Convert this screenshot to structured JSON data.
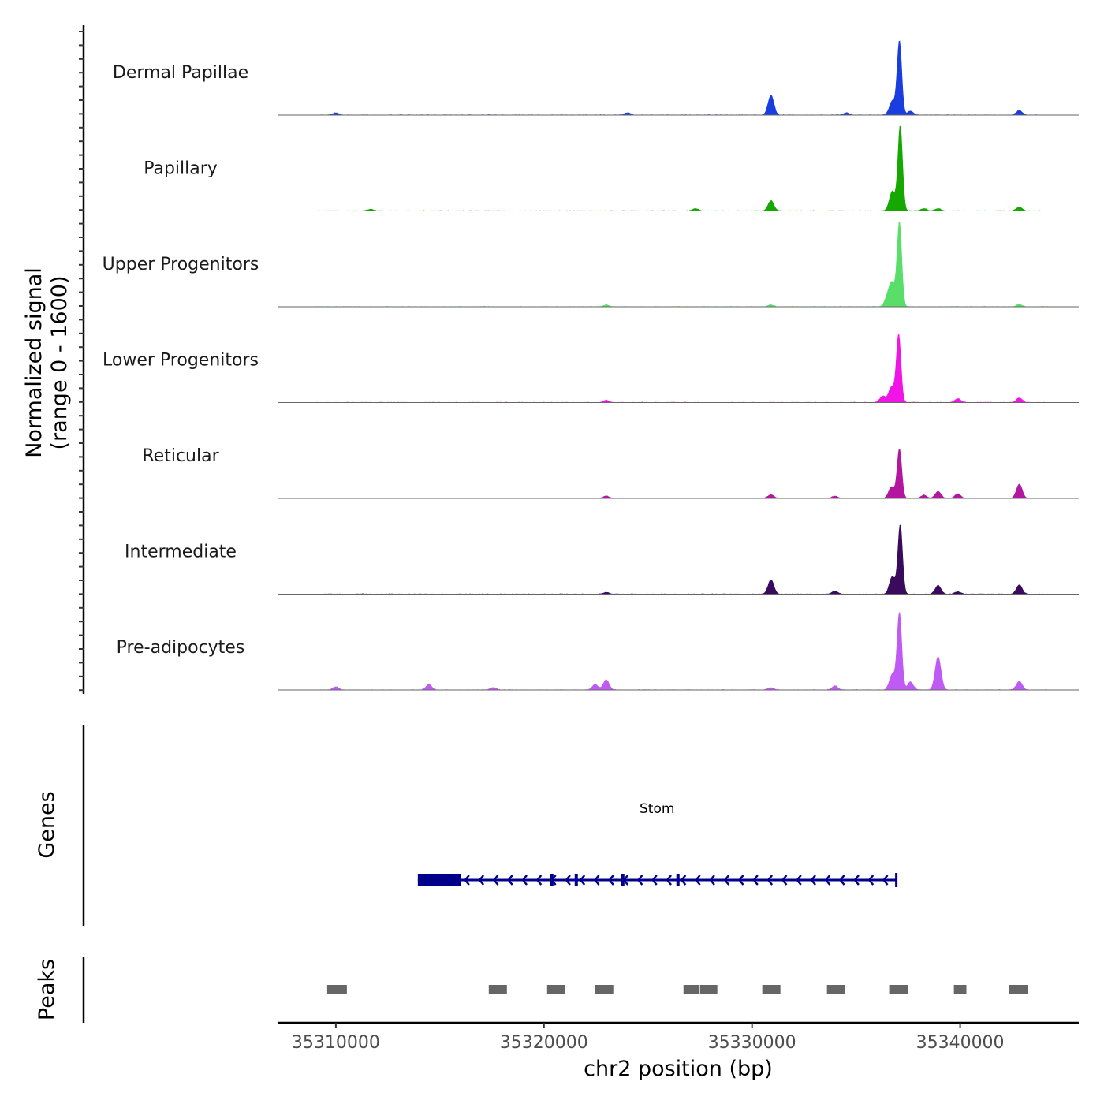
{
  "chart_data": {
    "type": "area",
    "title": "",
    "xlabel": "chr2 position (bp)",
    "ylabel": "Normalized signal\n(range 0 - 1600)",
    "ylabel_lines": [
      "Normalized signal",
      "(range 0 - 1600)"
    ],
    "ylim": [
      0,
      1600
    ],
    "xlim": [
      35307200,
      35345700
    ],
    "xticks": [
      35310000,
      35320000,
      35330000,
      35340000
    ],
    "xtick_labels": [
      "35310000",
      "35320000",
      "35330000",
      "35340000"
    ],
    "tracks": [
      {
        "name": "Dermal Papillae",
        "color": "#1a3de0",
        "peaks": [
          [
            35337083,
            1275
          ],
          [
            35336742,
            245
          ],
          [
            35330909,
            340
          ],
          [
            35342842,
            80
          ],
          [
            35334545,
            40
          ],
          [
            35324015,
            40
          ],
          [
            35310000,
            40
          ],
          [
            35337610,
            70
          ]
        ]
      },
      {
        "name": "Papillary",
        "color": "#14a800",
        "peaks": [
          [
            35337120,
            1465
          ],
          [
            35336742,
            340
          ],
          [
            35330909,
            175
          ],
          [
            35342842,
            65
          ],
          [
            35338260,
            40
          ],
          [
            35338940,
            40
          ],
          [
            35311667,
            30
          ],
          [
            35327280,
            40
          ]
        ]
      },
      {
        "name": "Upper Progenitors",
        "color": "#5ade6a",
        "peaks": [
          [
            35337083,
            1450
          ],
          [
            35336742,
            380
          ],
          [
            35336515,
            160
          ],
          [
            35342842,
            40
          ],
          [
            35330909,
            30
          ],
          [
            35322990,
            30
          ]
        ]
      },
      {
        "name": "Lower Progenitors",
        "color": "#f014e6",
        "peaks": [
          [
            35337045,
            1165
          ],
          [
            35336705,
            270
          ],
          [
            35339890,
            65
          ],
          [
            35342842,
            80
          ],
          [
            35322990,
            40
          ],
          [
            35336280,
            110
          ]
        ]
      },
      {
        "name": "Reticular",
        "color": "#b3179f",
        "peaks": [
          [
            35337083,
            855
          ],
          [
            35336705,
            200
          ],
          [
            35342842,
            245
          ],
          [
            35338940,
            120
          ],
          [
            35339890,
            80
          ],
          [
            35330909,
            65
          ],
          [
            35322990,
            40
          ],
          [
            35333980,
            40
          ],
          [
            35338260,
            55
          ]
        ]
      },
      {
        "name": "Intermediate",
        "color": "#3a0a5c",
        "peaks": [
          [
            35337120,
            1195
          ],
          [
            35336742,
            300
          ],
          [
            35330909,
            245
          ],
          [
            35338940,
            150
          ],
          [
            35342842,
            160
          ],
          [
            35333980,
            55
          ],
          [
            35339890,
            40
          ],
          [
            35322990,
            30
          ]
        ]
      },
      {
        "name": "Pre-adipocytes",
        "color": "#c05af5",
        "peaks": [
          [
            35337083,
            1330
          ],
          [
            35338940,
            570
          ],
          [
            35337610,
            135
          ],
          [
            35336742,
            270
          ],
          [
            35322990,
            175
          ],
          [
            35322460,
            95
          ],
          [
            35314470,
            95
          ],
          [
            35310000,
            55
          ],
          [
            35342842,
            150
          ],
          [
            35333980,
            70
          ],
          [
            35330909,
            40
          ],
          [
            35317560,
            40
          ]
        ]
      }
    ],
    "genes_label": "Genes",
    "genes": [
      {
        "name": "Stom",
        "strand": "-",
        "start": 35313940,
        "end": 35336932,
        "thick_block": [
          35313940,
          35316023
        ],
        "exons": [
          35320380,
          35321553,
          35323790,
          35326440
        ],
        "color": "#00008b"
      }
    ],
    "peaks_label": "Peaks",
    "peak_regions": [
      [
        35309583,
        35310530
      ],
      [
        35317348,
        35318220
      ],
      [
        35320152,
        35321023
      ],
      [
        35322462,
        35323333
      ],
      [
        35326705,
        35327462
      ],
      [
        35327500,
        35328333
      ],
      [
        35330492,
        35331364
      ],
      [
        35333600,
        35334470
      ],
      [
        35336590,
        35337500
      ],
      [
        35339700,
        35340300
      ],
      [
        35342350,
        35343260
      ]
    ],
    "peak_color": "#666666"
  }
}
